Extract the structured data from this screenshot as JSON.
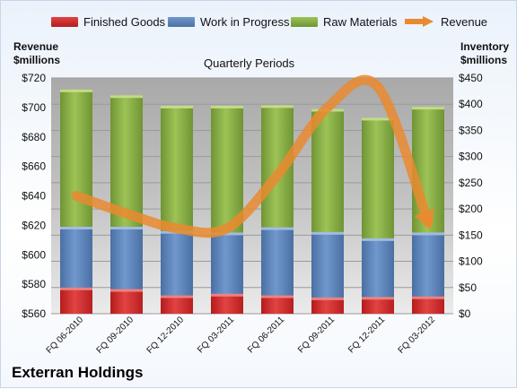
{
  "legend": [
    {
      "name": "Finished Goods",
      "color": "#d62d2d",
      "kind": "box"
    },
    {
      "name": "Work in Progress",
      "color": "#5f86bd",
      "kind": "box"
    },
    {
      "name": "Raw Materials",
      "color": "#8bb047",
      "kind": "box"
    },
    {
      "name": "Revenue",
      "color": "#ea8a2f",
      "kind": "arrow"
    }
  ],
  "left_axis_title": [
    "Revenue",
    "$millions"
  ],
  "right_axis_title": [
    "Inventory",
    "$millions"
  ],
  "plot_title": "Quarterly Periods",
  "company": "Exterran Holdings",
  "chart_data": {
    "type": "bar",
    "stacked": true,
    "categories": [
      "FQ 06-2010",
      "FQ 09-2010",
      "FQ 12-2010",
      "FQ 03-2011",
      "FQ 06-2011",
      "FQ 09-2011",
      "FQ 12-2011",
      "FQ 03-2012"
    ],
    "series": [
      {
        "name": "Finished Goods",
        "axis": "right",
        "values": [
          50,
          47,
          35,
          38,
          35,
          31,
          32,
          33
        ]
      },
      {
        "name": "Work in Progress",
        "axis": "right",
        "values": [
          116,
          119,
          123,
          117,
          130,
          125,
          112,
          122
        ]
      },
      {
        "name": "Raw Materials",
        "axis": "right",
        "values": [
          262,
          251,
          239,
          242,
          233,
          235,
          230,
          240
        ]
      },
      {
        "name": "Revenue",
        "axis": "left",
        "type": "line",
        "values": [
          640,
          628,
          618,
          618,
          654,
          700,
          714,
          622
        ]
      }
    ],
    "left_axis": {
      "ylim": [
        560,
        720
      ],
      "ticks": [
        "$560",
        "$580",
        "$600",
        "$620",
        "$640",
        "$660",
        "$680",
        "$700",
        "$720"
      ]
    },
    "right_axis": {
      "ylim": [
        0,
        450
      ],
      "ticks": [
        "$0",
        "$50",
        "$100",
        "$150",
        "$200",
        "$250",
        "$300",
        "$350",
        "$400",
        "$450"
      ]
    },
    "grid": true
  }
}
